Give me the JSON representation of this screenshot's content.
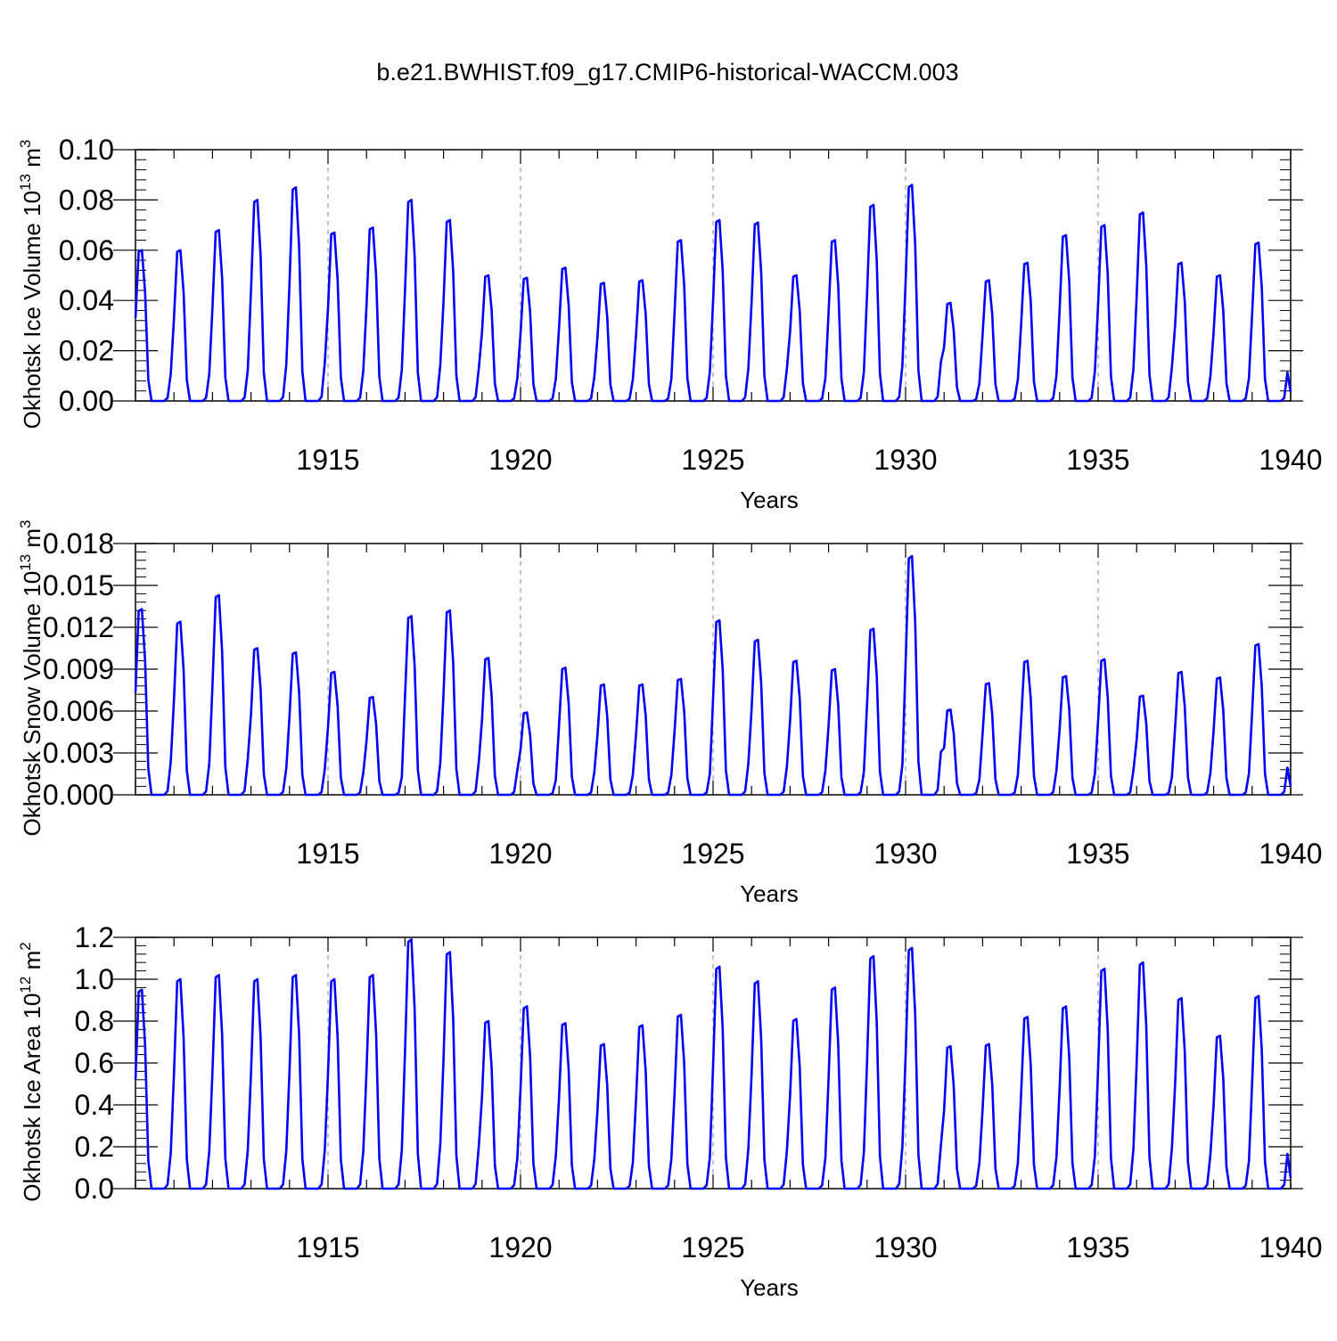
{
  "figure_title": "b.e21.BWHIST.f09_g17.CMIP6-historical-WACCM.003",
  "colors": {
    "line": "#0000ff",
    "axis": "#000000",
    "grid": "#888888"
  },
  "chart_data": [
    {
      "type": "line",
      "title": "",
      "xlabel": "Years",
      "ylabel": {
        "base": "Okhotsk Ice Volume 10",
        "exp": "13",
        "unit": " m",
        "unit_exp": "3"
      },
      "xlim": [
        1910.0,
        1940.0
      ],
      "ylim": [
        0.0,
        0.1
      ],
      "x_ticks": [
        "1915",
        "1920",
        "1925",
        "1930",
        "1935",
        "1940"
      ],
      "y_ticks": [
        "0.00",
        "0.02",
        "0.04",
        "0.06",
        "0.08",
        "0.10"
      ],
      "grid": "dashed vertical lines at labeled years",
      "series": [
        {
          "peaks": [
            0.06,
            0.06,
            0.068,
            0.08,
            0.085,
            0.067,
            0.069,
            0.08,
            0.072,
            0.05,
            0.049,
            0.053,
            0.047,
            0.048,
            0.064,
            0.072,
            0.071,
            0.05,
            0.064,
            0.078,
            0.086,
            0.039,
            0.048,
            0.055,
            0.066,
            0.07,
            0.075,
            0.055,
            0.05,
            0.063
          ]
        }
      ]
    },
    {
      "type": "line",
      "title": "",
      "xlabel": "Years",
      "ylabel": {
        "base": "Okhotsk Snow Volume 10",
        "exp": "13",
        "unit": " m",
        "unit_exp": "3"
      },
      "xlim": [
        1910.0,
        1940.0
      ],
      "ylim": [
        0.0,
        0.018
      ],
      "x_ticks": [
        "1915",
        "1920",
        "1925",
        "1930",
        "1935",
        "1940"
      ],
      "y_ticks": [
        "0.000",
        "0.003",
        "0.006",
        "0.009",
        "0.012",
        "0.015",
        "0.018"
      ],
      "grid": "dashed vertical lines at labeled years",
      "series": [
        {
          "peaks": [
            0.0133,
            0.0124,
            0.0143,
            0.0105,
            0.0102,
            0.0088,
            0.007,
            0.0128,
            0.0132,
            0.0098,
            0.0059,
            0.0091,
            0.0079,
            0.0079,
            0.0083,
            0.0125,
            0.0111,
            0.0096,
            0.009,
            0.0119,
            0.0171,
            0.0061,
            0.008,
            0.0096,
            0.0085,
            0.0097,
            0.0071,
            0.0088,
            0.0084,
            0.0108
          ]
        }
      ]
    },
    {
      "type": "line",
      "title": "",
      "xlabel": "Years",
      "ylabel": {
        "base": "Okhotsk Ice Area 10",
        "exp": "12",
        "unit": " m",
        "unit_exp": "2"
      },
      "xlim": [
        1910.0,
        1940.0
      ],
      "ylim": [
        0.0,
        1.2
      ],
      "x_ticks": [
        "1915",
        "1920",
        "1925",
        "1930",
        "1935",
        "1940"
      ],
      "y_ticks": [
        "0.0",
        "0.2",
        "0.4",
        "0.6",
        "0.8",
        "1.0",
        "1.2"
      ],
      "grid": "dashed vertical lines at labeled years",
      "series": [
        {
          "peaks": [
            0.95,
            1.0,
            1.02,
            1.0,
            1.02,
            1.0,
            1.02,
            1.19,
            1.13,
            0.8,
            0.87,
            0.79,
            0.69,
            0.78,
            0.83,
            1.06,
            0.99,
            0.81,
            0.96,
            1.11,
            1.15,
            0.68,
            0.69,
            0.82,
            0.87,
            1.05,
            1.08,
            0.91,
            0.73,
            0.92
          ]
        }
      ]
    }
  ]
}
